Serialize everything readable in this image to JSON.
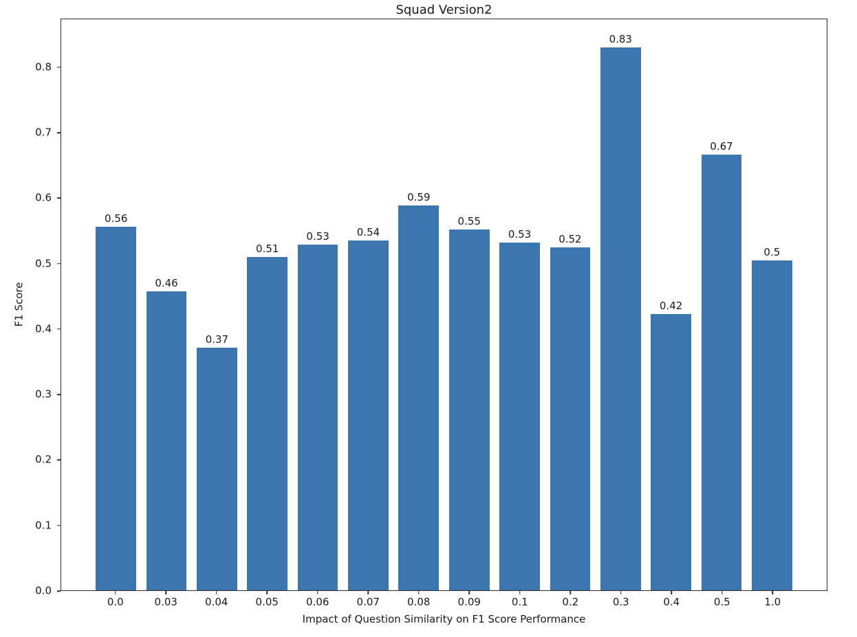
{
  "figure": {
    "background": "#ffffff",
    "text_color": "#1a1a1a",
    "spine_color": "#2b2b2b"
  },
  "chart_data": {
    "type": "bar",
    "title": "Squad Version2",
    "xlabel": "Impact of Question Similarity on F1 Score Performance",
    "ylabel": "F1 Score",
    "categories": [
      "0.0",
      "0.03",
      "0.04",
      "0.05",
      "0.06",
      "0.07",
      "0.08",
      "0.09",
      "0.1",
      "0.2",
      "0.3",
      "0.4",
      "0.5",
      "1.0"
    ],
    "values": [
      0.557,
      0.458,
      0.372,
      0.51,
      0.529,
      0.536,
      0.589,
      0.553,
      0.533,
      0.525,
      0.831,
      0.423,
      0.667,
      0.505
    ],
    "bar_labels": [
      "0.56",
      "0.46",
      "0.37",
      "0.51",
      "0.53",
      "0.54",
      "0.59",
      "0.55",
      "0.53",
      "0.52",
      "0.83",
      "0.42",
      "0.67",
      "0.5"
    ],
    "yticks": [
      "0.0",
      "0.1",
      "0.2",
      "0.3",
      "0.4",
      "0.5",
      "0.6",
      "0.7",
      "0.8"
    ],
    "ylim": [
      0,
      0.8745
    ],
    "bar_color": "#3b76b0",
    "bar_width_fraction": 0.8,
    "grid": false,
    "legend": "none"
  }
}
